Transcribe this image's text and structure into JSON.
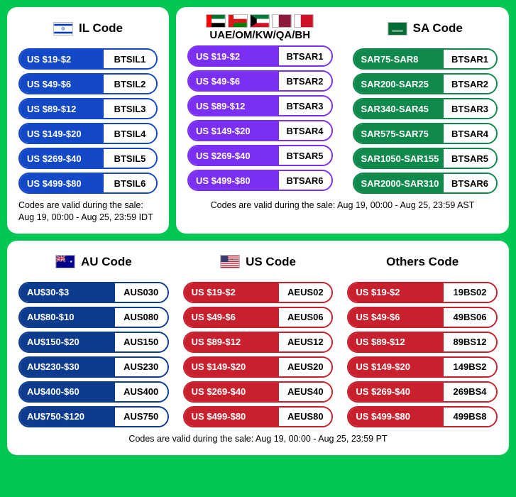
{
  "top_left": {
    "title": "IL Code",
    "flag": "il",
    "color": "c-blue",
    "codes": [
      {
        "deal": "US $19-$2",
        "code": "BTSIL1"
      },
      {
        "deal": "US $49-$6",
        "code": "BTSIL2"
      },
      {
        "deal": "US $89-$12",
        "code": "BTSIL3"
      },
      {
        "deal": "US $149-$20",
        "code": "BTSIL4"
      },
      {
        "deal": "US $269-$40",
        "code": "BTSIL5"
      },
      {
        "deal": "US $499-$80",
        "code": "BTSIL6"
      }
    ],
    "note": "Codes are valid during the sale:\nAug 19, 00:00 - Aug 25, 23:59 IDT"
  },
  "top_right": {
    "group1": {
      "title": "UAE/OM/KW/QA/BH",
      "flags": [
        "ae",
        "om",
        "kw",
        "qa",
        "bh"
      ],
      "color": "c-purple",
      "codes": [
        {
          "deal": "US $19-$2",
          "code": "BTSAR1"
        },
        {
          "deal": "US $49-$6",
          "code": "BTSAR2"
        },
        {
          "deal": "US $89-$12",
          "code": "BTSAR3"
        },
        {
          "deal": "US $149-$20",
          "code": "BTSAR4"
        },
        {
          "deal": "US $269-$40",
          "code": "BTSAR5"
        },
        {
          "deal": "US $499-$80",
          "code": "BTSAR6"
        }
      ]
    },
    "group2": {
      "title": "SA Code",
      "flag": "sa",
      "color": "c-green",
      "codes": [
        {
          "deal": "SAR75-SAR8",
          "code": "BTSAR1"
        },
        {
          "deal": "SAR200-SAR25",
          "code": "BTSAR2"
        },
        {
          "deal": "SAR340-SAR45",
          "code": "BTSAR3"
        },
        {
          "deal": "SAR575-SAR75",
          "code": "BTSAR4"
        },
        {
          "deal": "SAR1050-SAR155",
          "code": "BTSAR5"
        },
        {
          "deal": "SAR2000-SAR310",
          "code": "BTSAR6"
        }
      ]
    },
    "note": "Codes are valid during the sale: Aug 19, 00:00 - Aug 25, 23:59 AST"
  },
  "bottom": {
    "group1": {
      "title": "AU Code",
      "flag": "au",
      "color": "c-navy",
      "codes": [
        {
          "deal": "AU$30-$3",
          "code": "AUS030"
        },
        {
          "deal": "AU$80-$10",
          "code": "AUS080"
        },
        {
          "deal": "AU$150-$20",
          "code": "AUS150"
        },
        {
          "deal": "AU$230-$30",
          "code": "AUS230"
        },
        {
          "deal": "AU$400-$60",
          "code": "AUS400"
        },
        {
          "deal": "AU$750-$120",
          "code": "AUS750"
        }
      ]
    },
    "group2": {
      "title": "US Code",
      "flag": "us",
      "color": "c-red",
      "codes": [
        {
          "deal": "US $19-$2",
          "code": "AEUS02"
        },
        {
          "deal": "US $49-$6",
          "code": "AEUS06"
        },
        {
          "deal": "US $89-$12",
          "code": "AEUS12"
        },
        {
          "deal": "US $149-$20",
          "code": "AEUS20"
        },
        {
          "deal": "US $269-$40",
          "code": "AEUS40"
        },
        {
          "deal": "US $499-$80",
          "code": "AEUS80"
        }
      ]
    },
    "group3": {
      "title": "Others Code",
      "flag": null,
      "color": "c-red",
      "codes": [
        {
          "deal": "US $19-$2",
          "code": "19BS02"
        },
        {
          "deal": "US $49-$6",
          "code": "49BS06"
        },
        {
          "deal": "US $89-$12",
          "code": "89BS12"
        },
        {
          "deal": "US $149-$20",
          "code": "149BS2"
        },
        {
          "deal": "US $269-$40",
          "code": "269BS4"
        },
        {
          "deal": "US $499-$80",
          "code": "499BS8"
        }
      ]
    },
    "note": "Codes are valid during the sale: Aug 19, 00:00 - Aug 25, 23:59 PT"
  }
}
